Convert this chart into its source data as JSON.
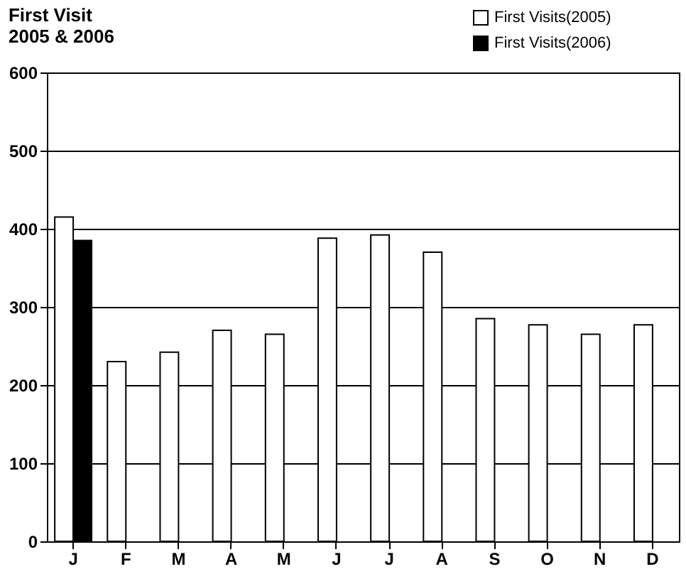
{
  "chart_data": {
    "type": "bar",
    "title": [
      "First Visit",
      "2005 & 2006"
    ],
    "categories": [
      "J",
      "F",
      "M",
      "A",
      "M",
      "J",
      "J",
      "A",
      "S",
      "O",
      "N",
      "D"
    ],
    "series": [
      {
        "name": "First Visits(2005)",
        "color": "#ffffff",
        "values": [
          415,
          230,
          242,
          270,
          265,
          388,
          392,
          370,
          285,
          277,
          265,
          277
        ]
      },
      {
        "name": "First Visits(2006)",
        "color": "#000000",
        "values": [
          385,
          null,
          null,
          null,
          null,
          null,
          null,
          null,
          null,
          null,
          null,
          null
        ]
      }
    ],
    "ylim": [
      0,
      600
    ],
    "yticks": [
      0,
      100,
      200,
      300,
      400,
      500,
      600
    ],
    "grid": "y",
    "legend": "top right"
  }
}
